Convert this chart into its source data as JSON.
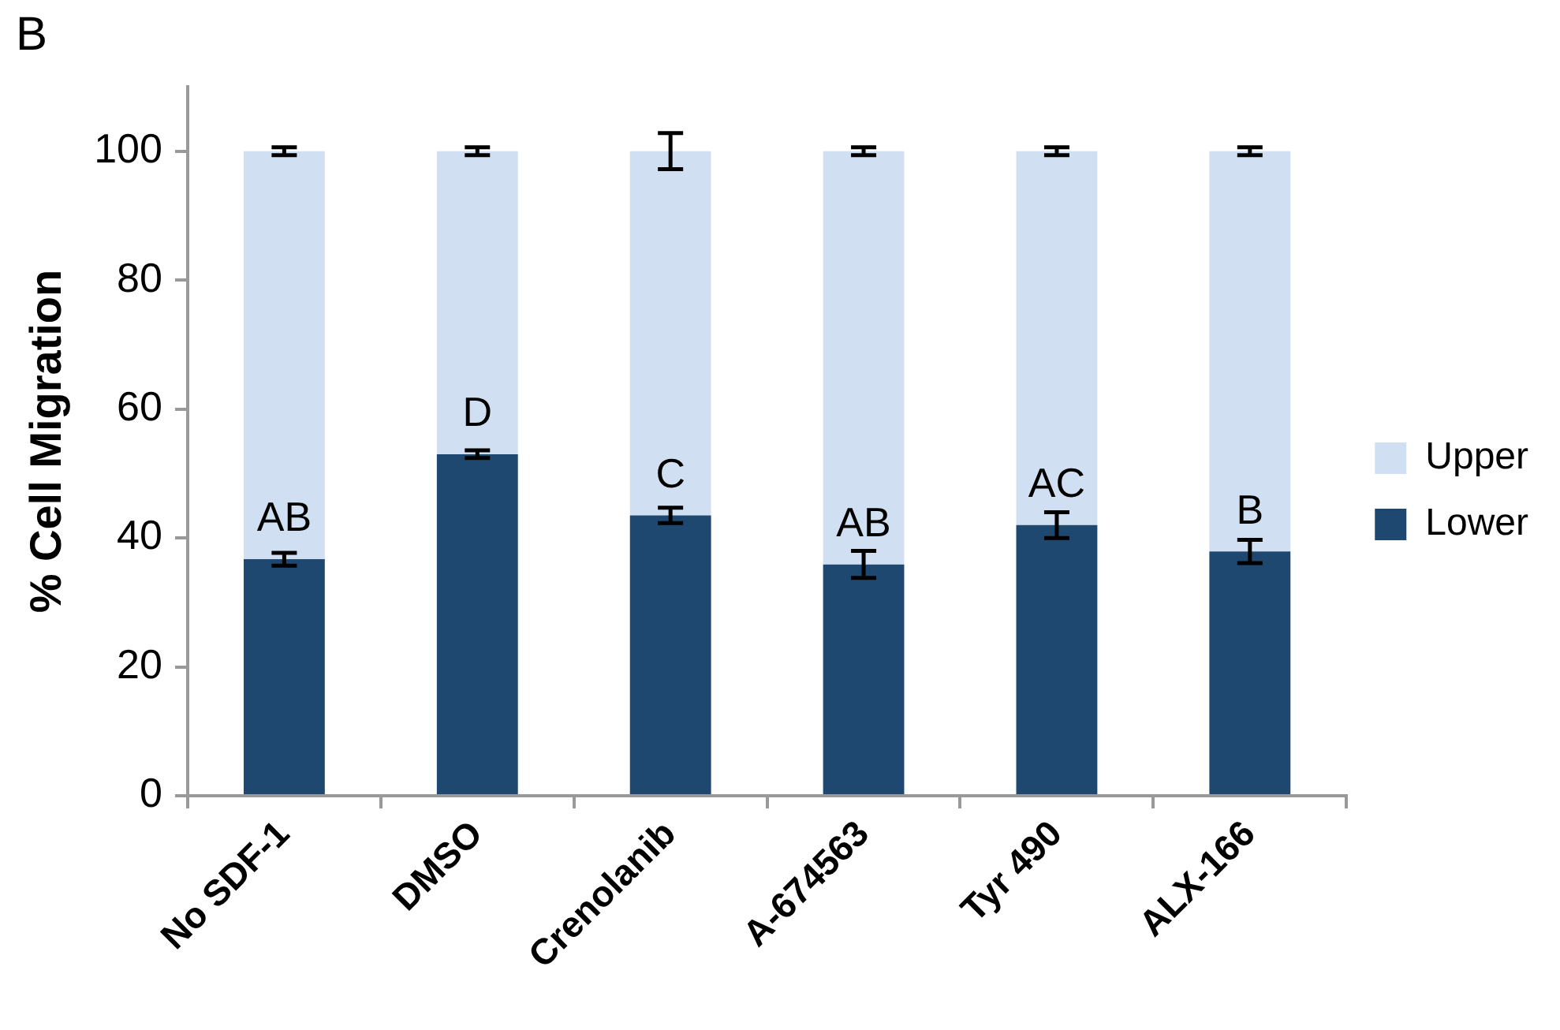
{
  "chart_data": {
    "type": "bar",
    "title": "B",
    "ylabel": "% Cell Migration",
    "categories": [
      "No SDF-1",
      "DMSO",
      "Crenolanib",
      "A-674563",
      "Tyr 490",
      "ALX-166"
    ],
    "stacked": true,
    "series": [
      {
        "name": "Lower",
        "color": "#1f4870",
        "values": [
          36.7,
          53.0,
          43.5,
          35.9,
          42.0,
          37.9
        ],
        "errors": [
          1.0,
          0.6,
          1.2,
          2.1,
          2.0,
          1.8
        ]
      },
      {
        "name": "Upper",
        "color": "#d0e0f2",
        "values": [
          63.3,
          47.0,
          56.5,
          64.1,
          58.0,
          62.1
        ],
        "errors": [
          0.6,
          0.6,
          2.8,
          0.6,
          0.6,
          0.6
        ]
      }
    ],
    "ylim": [
      0,
      110
    ],
    "yticks": [
      0,
      20,
      40,
      60,
      80,
      100
    ],
    "annotations": [
      {
        "text": "AB",
        "x": "No SDF-1",
        "y": 36.7
      },
      {
        "text": "D",
        "x": "DMSO",
        "y": 53.0
      },
      {
        "text": "C",
        "x": "Crenolanib",
        "y": 43.5
      },
      {
        "text": "AB",
        "x": "A-674563",
        "y": 35.9
      },
      {
        "text": "AC",
        "x": "Tyr 490",
        "y": 42.0
      },
      {
        "text": "B",
        "x": "ALX-166",
        "y": 37.9
      }
    ],
    "grid": false,
    "legend": "right"
  }
}
